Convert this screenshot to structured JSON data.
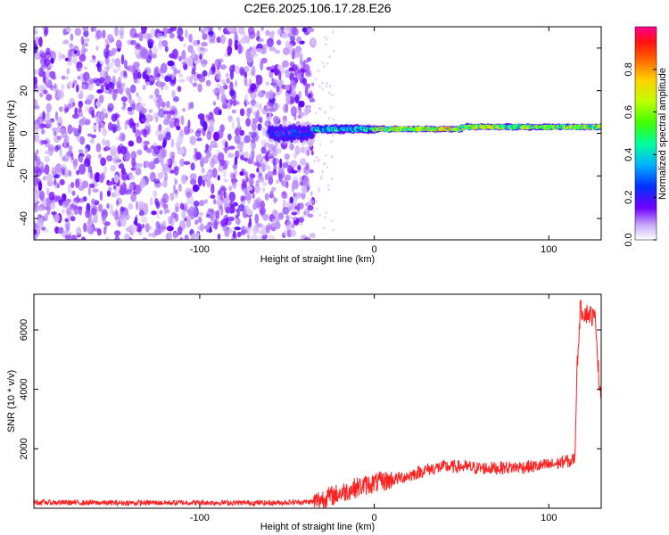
{
  "title": "C2E6.2025.106.17.28.E26",
  "chart_data": [
    {
      "type": "heatmap",
      "xlabel": "Height of straight line (km)",
      "ylabel": "Frequency (Hz)",
      "xlim": [
        -195,
        130
      ],
      "ylim": [
        -50,
        50
      ],
      "x_ticks": [
        -100,
        0,
        100
      ],
      "y_ticks": [
        -40,
        -20,
        0,
        20,
        40
      ],
      "colorbar": {
        "label": "Normalized spectral amplitude",
        "range": [
          0,
          1
        ],
        "ticks": [
          0.0,
          0.2,
          0.4,
          0.6,
          0.8
        ],
        "colormap": [
          "#ffffff",
          "#a070f0",
          "#6000ff",
          "#0040ff",
          "#00c0ff",
          "#00ff80",
          "#80ff00",
          "#ffff00",
          "#ffa000",
          "#ff2020",
          "#ff0080"
        ]
      },
      "noise_region_x": [
        -195,
        -35
      ],
      "signal_band": {
        "segments": [
          {
            "x": [
              -60,
              -35
            ],
            "center_hz": 0,
            "spread_hz": 6,
            "peak_amplitude": 0.3
          },
          {
            "x": [
              -35,
              0
            ],
            "center_hz": 2,
            "spread_hz": 3,
            "peak_amplitude": 0.5
          },
          {
            "x": [
              0,
              50
            ],
            "center_hz": 2,
            "spread_hz": 2,
            "peak_amplitude": 0.85
          },
          {
            "x": [
              50,
              130
            ],
            "center_hz": 3,
            "spread_hz": 2,
            "peak_amplitude": 0.75
          }
        ]
      }
    },
    {
      "type": "line",
      "xlabel": "Height of straight line (km)",
      "ylabel": "SNR (10 * v/v)",
      "xlim": [
        -195,
        130
      ],
      "ylim": [
        0,
        7200
      ],
      "x_ticks": [
        -100,
        0,
        100
      ],
      "y_ticks": [
        2000,
        4000,
        6000
      ],
      "series": [
        {
          "color": "#ff2020",
          "x": [
            -195,
            -150,
            -100,
            -60,
            -35,
            -20,
            -10,
            0,
            10,
            20,
            30,
            40,
            50,
            60,
            70,
            80,
            90,
            100,
            105,
            110,
            112,
            115,
            116,
            118,
            120,
            122,
            124,
            126,
            127,
            128,
            129,
            130
          ],
          "y": [
            200,
            180,
            190,
            180,
            220,
            500,
            700,
            850,
            950,
            1100,
            1300,
            1400,
            1400,
            1350,
            1350,
            1380,
            1400,
            1450,
            1500,
            1600,
            1550,
            1700,
            4500,
            6700,
            6600,
            6550,
            6500,
            6400,
            6300,
            5000,
            4100,
            4000
          ]
        }
      ]
    }
  ]
}
